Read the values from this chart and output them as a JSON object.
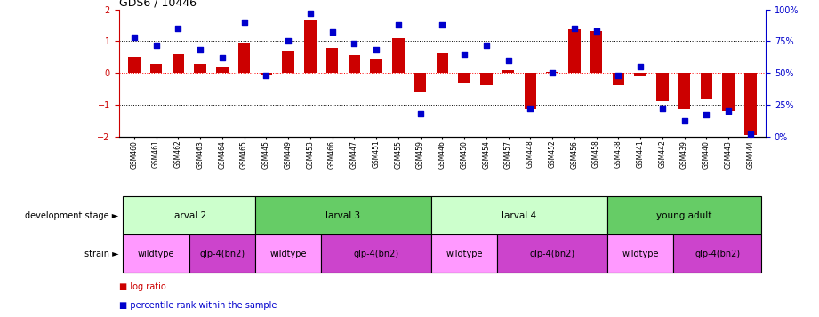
{
  "title": "GDS6 / 10446",
  "samples": [
    "GSM460",
    "GSM461",
    "GSM462",
    "GSM463",
    "GSM464",
    "GSM465",
    "GSM445",
    "GSM449",
    "GSM453",
    "GSM466",
    "GSM447",
    "GSM451",
    "GSM455",
    "GSM459",
    "GSM446",
    "GSM450",
    "GSM454",
    "GSM457",
    "GSM448",
    "GSM452",
    "GSM456",
    "GSM458",
    "GSM438",
    "GSM441",
    "GSM442",
    "GSM439",
    "GSM440",
    "GSM443",
    "GSM444"
  ],
  "log_ratio": [
    0.5,
    0.28,
    0.6,
    0.28,
    0.18,
    0.95,
    -0.05,
    0.7,
    1.65,
    0.8,
    0.55,
    0.45,
    1.1,
    -0.6,
    0.62,
    -0.3,
    -0.4,
    0.1,
    -1.15,
    0.02,
    1.38,
    1.32,
    -0.38,
    -0.12,
    -0.9,
    -1.15,
    -0.84,
    -1.2,
    -1.95
  ],
  "percentile": [
    78,
    72,
    85,
    68,
    62,
    90,
    48,
    75,
    97,
    82,
    73,
    68,
    88,
    18,
    88,
    65,
    72,
    60,
    22,
    50,
    85,
    83,
    48,
    55,
    22,
    12,
    17,
    20,
    2
  ],
  "dev_stages": [
    {
      "label": "larval 2",
      "start": 0,
      "end": 5,
      "color": "#ccffcc"
    },
    {
      "label": "larval 3",
      "start": 6,
      "end": 13,
      "color": "#66cc66"
    },
    {
      "label": "larval 4",
      "start": 14,
      "end": 21,
      "color": "#ccffcc"
    },
    {
      "label": "young adult",
      "start": 22,
      "end": 28,
      "color": "#66cc66"
    }
  ],
  "strains": [
    {
      "label": "wildtype",
      "start": 0,
      "end": 2,
      "color": "#ff99ff"
    },
    {
      "label": "glp-4(bn2)",
      "start": 3,
      "end": 5,
      "color": "#cc44cc"
    },
    {
      "label": "wildtype",
      "start": 6,
      "end": 8,
      "color": "#ff99ff"
    },
    {
      "label": "glp-4(bn2)",
      "start": 9,
      "end": 13,
      "color": "#cc44cc"
    },
    {
      "label": "wildtype",
      "start": 14,
      "end": 16,
      "color": "#ff99ff"
    },
    {
      "label": "glp-4(bn2)",
      "start": 17,
      "end": 21,
      "color": "#cc44cc"
    },
    {
      "label": "wildtype",
      "start": 22,
      "end": 24,
      "color": "#ff99ff"
    },
    {
      "label": "glp-4(bn2)",
      "start": 25,
      "end": 28,
      "color": "#cc44cc"
    }
  ],
  "bar_color": "#cc0000",
  "dot_color": "#0000cc",
  "ylim_left": [
    -2.0,
    2.0
  ],
  "ylim_right": [
    0,
    100
  ],
  "left_yticks": [
    -2,
    -1,
    0,
    1,
    2
  ],
  "right_yticks": [
    0,
    25,
    50,
    75,
    100
  ],
  "right_yticklabels": [
    "0%",
    "25%",
    "50%",
    "75%",
    "100%"
  ],
  "dev_label": "development stage",
  "strain_label": "strain",
  "legend1": "log ratio",
  "legend2": "percentile rank within the sample"
}
